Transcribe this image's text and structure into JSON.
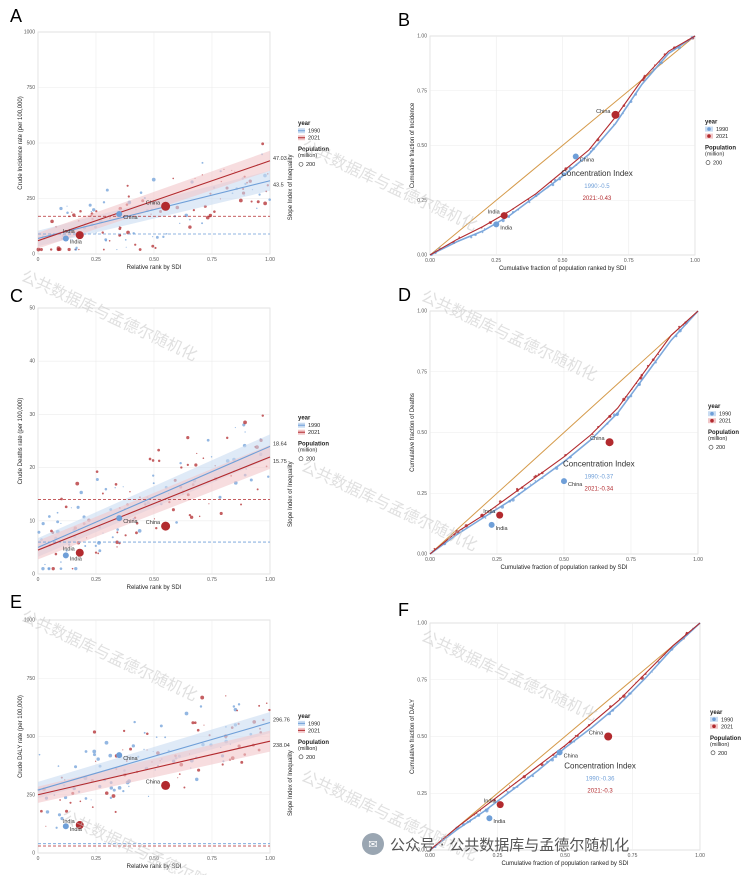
{
  "colors": {
    "c1990": "#6f9fd8",
    "c2021": "#b22a2e",
    "ci1990": "#c9dcf2",
    "ci2021": "#f1c7c9",
    "diag": "#d59a4a"
  },
  "legend": {
    "title": "year",
    "y1990": "1990",
    "y2021": "2021",
    "pop_title": "Population\n(million)",
    "pop_value": "200"
  },
  "watermark": "公共数据库与孟德尔随机化",
  "footer": {
    "icon": "wechat-icon",
    "text": "公众号 · 公共数据库与孟德尔随机化"
  },
  "chart_data": [
    {
      "id": "A",
      "letter": "A",
      "type": "scatter",
      "ylabel": "Crude Incidence rate (per 100,000)",
      "xlabel": "Relative rank by SDI",
      "side_title": "Slope Index of Inequality",
      "xlim": [
        0,
        1
      ],
      "ylim": [
        0,
        1000
      ],
      "xticks": [
        "0",
        "0.25",
        "0.50",
        "0.75",
        "1.00"
      ],
      "yticks": [
        "0",
        "250",
        "500",
        "750",
        "1000"
      ],
      "line1990": {
        "y0": 70,
        "y1": 330,
        "label": "43.5"
      },
      "line2021": {
        "y0": 60,
        "y1": 420,
        "label": "47.03"
      },
      "hline1990": 90,
      "hline2021": 170,
      "countries": [
        {
          "name": "India",
          "year": "2021",
          "x": 0.18,
          "y": 85,
          "size": 4
        },
        {
          "name": "India",
          "year": "1990",
          "x": 0.12,
          "y": 70,
          "size": 3
        },
        {
          "name": "China",
          "year": "2021",
          "x": 0.55,
          "y": 215,
          "size": 4.5
        },
        {
          "name": "China",
          "year": "1990",
          "x": 0.35,
          "y": 180,
          "size": 3
        }
      ]
    },
    {
      "id": "B",
      "letter": "B",
      "type": "line",
      "ylabel": "Cumulative fraction of Incidence",
      "xlabel": "Cumulative fraction of population ranked by SDI",
      "xlim": [
        0,
        1
      ],
      "ylim": [
        0,
        1
      ],
      "xticks": [
        "0.00",
        "0.25",
        "0.50",
        "0.75",
        "1.00"
      ],
      "yticks": [
        "0.00",
        "0.25",
        "0.50",
        "0.75",
        "1.00"
      ],
      "ci_title": "Concentration Index",
      "ci_1990": "1990:-0.5",
      "ci_2021": "2021:-0.43",
      "curve1990": [
        [
          0,
          0
        ],
        [
          0.1,
          0.06
        ],
        [
          0.2,
          0.11
        ],
        [
          0.3,
          0.18
        ],
        [
          0.4,
          0.27
        ],
        [
          0.5,
          0.36
        ],
        [
          0.6,
          0.46
        ],
        [
          0.7,
          0.6
        ],
        [
          0.8,
          0.78
        ],
        [
          0.9,
          0.92
        ],
        [
          1,
          1
        ]
      ],
      "curve2021": [
        [
          0,
          0
        ],
        [
          0.1,
          0.07
        ],
        [
          0.2,
          0.13
        ],
        [
          0.3,
          0.2
        ],
        [
          0.4,
          0.28
        ],
        [
          0.5,
          0.38
        ],
        [
          0.6,
          0.48
        ],
        [
          0.7,
          0.63
        ],
        [
          0.8,
          0.8
        ],
        [
          0.9,
          0.93
        ],
        [
          1,
          1
        ]
      ],
      "countries": [
        {
          "name": "India",
          "year": "2021",
          "x": 0.28,
          "y": 0.18,
          "size": 3.5
        },
        {
          "name": "India",
          "year": "1990",
          "x": 0.25,
          "y": 0.14,
          "size": 3
        },
        {
          "name": "China",
          "year": "2021",
          "x": 0.7,
          "y": 0.64,
          "size": 4
        },
        {
          "name": "China",
          "year": "1990",
          "x": 0.55,
          "y": 0.45,
          "size": 3
        }
      ]
    },
    {
      "id": "C",
      "letter": "C",
      "type": "scatter",
      "ylabel": "Crude Deaths rate (per 100,000)",
      "xlabel": "Relative rank by SDI",
      "side_title": "Slope Index of Inequality",
      "xlim": [
        0,
        1
      ],
      "ylim": [
        0,
        50
      ],
      "xticks": [
        "0",
        "0.25",
        "0.50",
        "0.75",
        "1.00"
      ],
      "yticks": [
        "0",
        "10",
        "20",
        "30",
        "40",
        "50"
      ],
      "line1990": {
        "y0": 5,
        "y1": 24,
        "label": "18.64"
      },
      "line2021": {
        "y0": 4.5,
        "y1": 22,
        "label": "15.75"
      },
      "hline1990": 6,
      "hline2021": 14,
      "countries": [
        {
          "name": "India",
          "year": "2021",
          "x": 0.18,
          "y": 4,
          "size": 4
        },
        {
          "name": "India",
          "year": "1990",
          "x": 0.12,
          "y": 3.5,
          "size": 3
        },
        {
          "name": "China",
          "year": "2021",
          "x": 0.55,
          "y": 9,
          "size": 4.5
        },
        {
          "name": "China",
          "year": "1990",
          "x": 0.35,
          "y": 10.5,
          "size": 3
        }
      ]
    },
    {
      "id": "D",
      "letter": "D",
      "type": "line",
      "ylabel": "Cumulative fraction of Deaths",
      "xlabel": "Cumulative fraction of population ranked by SDI",
      "xlim": [
        0,
        1
      ],
      "ylim": [
        0,
        1
      ],
      "xticks": [
        "0.00",
        "0.25",
        "0.50",
        "0.75",
        "1.00"
      ],
      "yticks": [
        "0.00",
        "0.25",
        "0.50",
        "0.75",
        "1.00"
      ],
      "ci_title": "Concentration Index",
      "ci_1990": "1990:-0.37",
      "ci_2021": "2021:-0.34",
      "curve1990": [
        [
          0,
          0
        ],
        [
          0.1,
          0.08
        ],
        [
          0.2,
          0.15
        ],
        [
          0.3,
          0.22
        ],
        [
          0.4,
          0.3
        ],
        [
          0.5,
          0.38
        ],
        [
          0.6,
          0.47
        ],
        [
          0.7,
          0.58
        ],
        [
          0.8,
          0.73
        ],
        [
          0.9,
          0.88
        ],
        [
          1,
          1
        ]
      ],
      "curve2021": [
        [
          0,
          0
        ],
        [
          0.1,
          0.09
        ],
        [
          0.2,
          0.16
        ],
        [
          0.3,
          0.24
        ],
        [
          0.4,
          0.32
        ],
        [
          0.5,
          0.4
        ],
        [
          0.6,
          0.49
        ],
        [
          0.7,
          0.6
        ],
        [
          0.8,
          0.75
        ],
        [
          0.9,
          0.9
        ],
        [
          1,
          1
        ]
      ],
      "countries": [
        {
          "name": "India",
          "year": "2021",
          "x": 0.26,
          "y": 0.16,
          "size": 3.5
        },
        {
          "name": "India",
          "year": "1990",
          "x": 0.23,
          "y": 0.12,
          "size": 3
        },
        {
          "name": "China",
          "year": "2021",
          "x": 0.67,
          "y": 0.46,
          "size": 4
        },
        {
          "name": "China",
          "year": "1990",
          "x": 0.5,
          "y": 0.3,
          "size": 3
        }
      ]
    },
    {
      "id": "E",
      "letter": "E",
      "type": "scatter",
      "ylabel": "Crude DALY rate (per 100,000)",
      "xlabel": "Relative rank by SDI",
      "side_title": "Slope Index of Inequality",
      "xlim": [
        0,
        1
      ],
      "ylim": [
        0,
        1000
      ],
      "xticks": [
        "0",
        "0.25",
        "0.50",
        "0.75",
        "1.00"
      ],
      "yticks": [
        "0",
        "250",
        "500",
        "750",
        "1000"
      ],
      "line1990": {
        "y0": 270,
        "y1": 560,
        "label": "296.76"
      },
      "line2021": {
        "y0": 250,
        "y1": 480,
        "label": "238.04"
      },
      "hline1990": 40,
      "hline2021": 30,
      "countries": [
        {
          "name": "India",
          "year": "2021",
          "x": 0.18,
          "y": 120,
          "size": 4
        },
        {
          "name": "India",
          "year": "1990",
          "x": 0.12,
          "y": 115,
          "size": 3
        },
        {
          "name": "China",
          "year": "2021",
          "x": 0.55,
          "y": 290,
          "size": 4.5
        },
        {
          "name": "China",
          "year": "1990",
          "x": 0.35,
          "y": 420,
          "size": 3
        }
      ]
    },
    {
      "id": "F",
      "letter": "F",
      "type": "line",
      "ylabel": "Cumulative fraction of DALY",
      "xlabel": "Cumulative fraction of population ranked by SDI",
      "xlim": [
        0,
        1
      ],
      "ylim": [
        0,
        1
      ],
      "xticks": [
        "0.00",
        "0.25",
        "0.50",
        "0.75",
        "1.00"
      ],
      "yticks": [
        "0.00",
        "0.25",
        "0.50",
        "0.75",
        "1.00"
      ],
      "ci_title": "Concentration Index",
      "ci_1990": "1990:-0.36",
      "ci_2021": "2021:-0.3",
      "curve1990": [
        [
          0,
          0
        ],
        [
          0.1,
          0.09
        ],
        [
          0.2,
          0.17
        ],
        [
          0.3,
          0.26
        ],
        [
          0.4,
          0.35
        ],
        [
          0.5,
          0.45
        ],
        [
          0.6,
          0.54
        ],
        [
          0.7,
          0.64
        ],
        [
          0.8,
          0.76
        ],
        [
          0.9,
          0.89
        ],
        [
          1,
          1
        ]
      ],
      "curve2021": [
        [
          0,
          0
        ],
        [
          0.1,
          0.1
        ],
        [
          0.2,
          0.19
        ],
        [
          0.3,
          0.28
        ],
        [
          0.4,
          0.37
        ],
        [
          0.5,
          0.46
        ],
        [
          0.6,
          0.56
        ],
        [
          0.7,
          0.66
        ],
        [
          0.8,
          0.78
        ],
        [
          0.9,
          0.9
        ],
        [
          1,
          1
        ]
      ],
      "countries": [
        {
          "name": "India",
          "year": "2021",
          "x": 0.26,
          "y": 0.2,
          "size": 3.5
        },
        {
          "name": "India",
          "year": "1990",
          "x": 0.22,
          "y": 0.14,
          "size": 3
        },
        {
          "name": "China",
          "year": "2021",
          "x": 0.66,
          "y": 0.5,
          "size": 4
        },
        {
          "name": "China",
          "year": "1990",
          "x": 0.48,
          "y": 0.43,
          "size": 3
        }
      ]
    }
  ]
}
